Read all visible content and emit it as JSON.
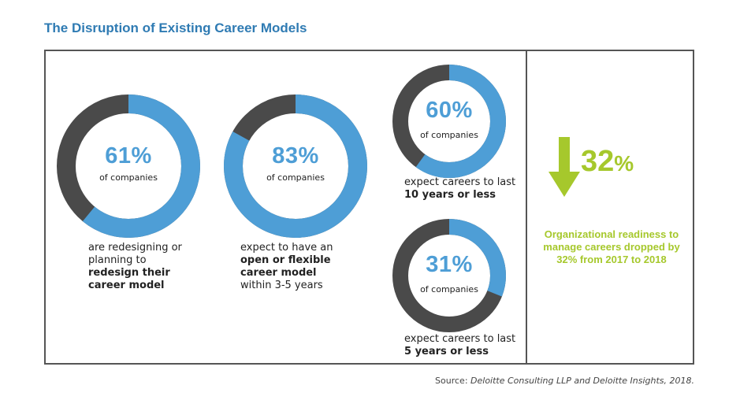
{
  "title": "The Disruption of Existing Career Models",
  "colors": {
    "accent": "#4e9ed6",
    "rest": "#4a4a4a",
    "highlight": "#a6c82c",
    "title": "#2f7bb3"
  },
  "chart_data": [
    {
      "type": "pie",
      "value": 61,
      "pct_label": "61%",
      "sub": "of companies",
      "desc_plain1": "are redesigning or planning to",
      "desc_bold": "redesign their career model",
      "desc_plain2": ""
    },
    {
      "type": "pie",
      "value": 83,
      "pct_label": "83%",
      "sub": "of companies",
      "desc_plain1": "expect to have an",
      "desc_bold": "open or flexible career model",
      "desc_plain2": "within 3-5 years"
    },
    {
      "type": "pie",
      "value": 60,
      "pct_label": "60%",
      "sub": "of companies",
      "desc_plain1": "expect careers to last",
      "desc_bold": "10 years or less",
      "desc_plain2": ""
    },
    {
      "type": "pie",
      "value": 31,
      "pct_label": "31%",
      "sub": "of companies",
      "desc_plain1": "expect careers to last",
      "desc_bold": "5 years or less",
      "desc_plain2": ""
    }
  ],
  "readiness": {
    "value": "32",
    "symbol": "%",
    "arrow_icon": "down-arrow-icon",
    "note": "Organizational readiness to manage careers dropped by 32% from 2017 to 2018"
  },
  "source": {
    "prefix": "Source: ",
    "text": "Deloitte Consulting LLP and Deloitte Insights, 2018."
  }
}
